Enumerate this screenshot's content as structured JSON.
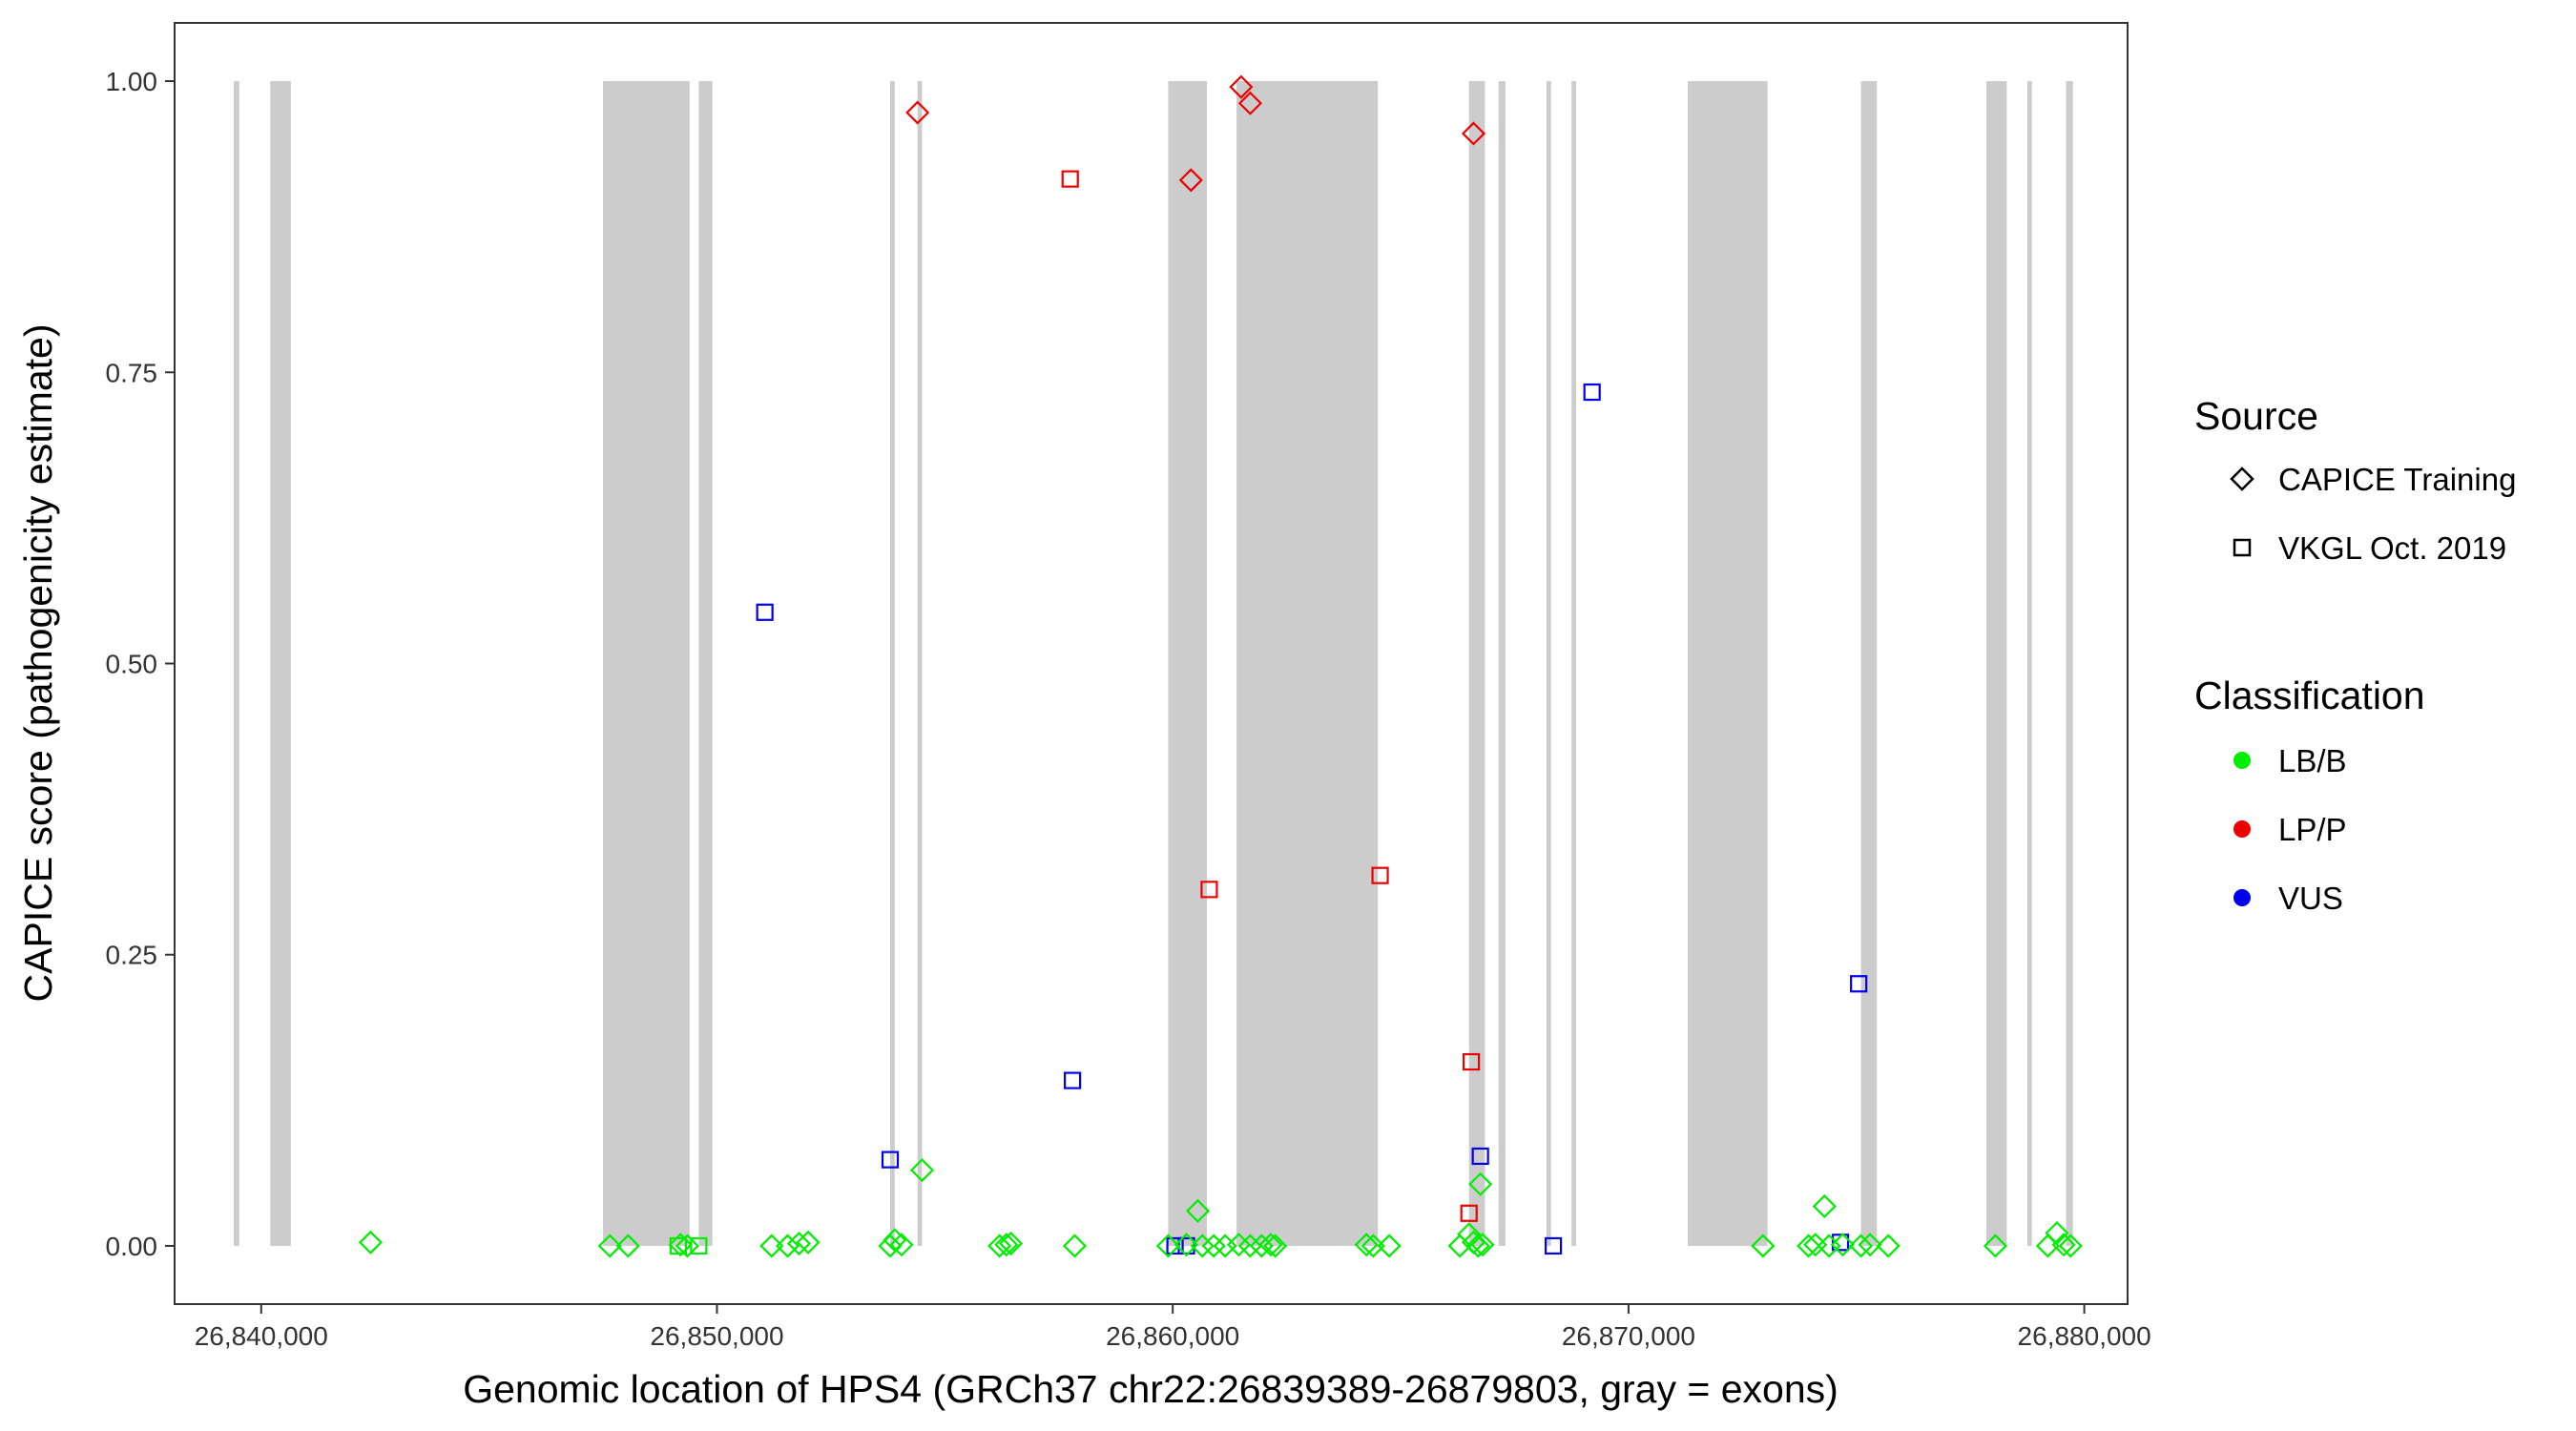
{
  "chart_data": {
    "type": "scatter",
    "title": "",
    "xlabel": "Genomic location of HPS4 (GRCh37 chr22:26839389-26879803, gray = exons)",
    "ylabel": "CAPICE score (pathogenicity estimate)",
    "xlim": [
      26838100,
      26880950
    ],
    "ylim": [
      -0.05,
      1.05
    ],
    "x_ticks": [
      26840000,
      26850000,
      26860000,
      26870000,
      26880000
    ],
    "x_tick_labels": [
      "26,840,000",
      "26,850,000",
      "26,860,000",
      "26,870,000",
      "26,880,000"
    ],
    "y_ticks": [
      0,
      0.25,
      0.5,
      0.75,
      1.0
    ],
    "y_tick_labels": [
      "0.00",
      "0.25",
      "0.50",
      "0.75",
      "1.00"
    ],
    "grid": false,
    "legend_position": "right",
    "exons": [
      [
        26839400,
        26839520
      ],
      [
        26840200,
        26840650
      ],
      [
        26847500,
        26849400
      ],
      [
        26849600,
        26849900
      ],
      [
        26853800,
        26853900
      ],
      [
        26854400,
        26854500
      ],
      [
        26859900,
        26860750
      ],
      [
        26861400,
        26864500
      ],
      [
        26866500,
        26866850
      ],
      [
        26867150,
        26867300
      ],
      [
        26868200,
        26868300
      ],
      [
        26868750,
        26868850
      ],
      [
        26871300,
        26873050
      ],
      [
        26875100,
        26875450
      ],
      [
        26877850,
        26878300
      ],
      [
        26878750,
        26878850
      ],
      [
        26879600,
        26879750
      ]
    ],
    "legend": {
      "source_title": "Source",
      "source_items": [
        {
          "label": "CAPICE Training",
          "shape": "diamond"
        },
        {
          "label": "VKGL Oct. 2019",
          "shape": "square"
        }
      ],
      "class_title": "Classification",
      "class_items": [
        {
          "label": "LB/B",
          "color": "#00ee00"
        },
        {
          "label": "LP/P",
          "color": "#ee0000"
        },
        {
          "label": "VUS",
          "color": "#0000ee"
        }
      ]
    },
    "series": [
      {
        "source": "CAPICE Training",
        "classification": "LP/P",
        "shape": "diamond",
        "color": "#ee0000",
        "points": [
          [
            26854400,
            0.973
          ],
          [
            26860400,
            0.915
          ],
          [
            26861500,
            0.995
          ],
          [
            26861700,
            0.981
          ],
          [
            26866600,
            0.955
          ]
        ]
      },
      {
        "source": "VKGL Oct. 2019",
        "classification": "LP/P",
        "shape": "square",
        "color": "#ee0000",
        "points": [
          [
            26857750,
            0.916
          ],
          [
            26860800,
            0.306
          ],
          [
            26864550,
            0.318
          ],
          [
            26866550,
            0.158
          ],
          [
            26866500,
            0.028
          ]
        ]
      },
      {
        "source": "VKGL Oct. 2019",
        "classification": "VUS",
        "shape": "square",
        "color": "#0000ee",
        "points": [
          [
            26851050,
            0.544
          ],
          [
            26853800,
            0.074
          ],
          [
            26857800,
            0.142
          ],
          [
            26860050,
            0.0
          ],
          [
            26860300,
            0.0
          ],
          [
            26866750,
            0.077
          ],
          [
            26868350,
            0.0
          ],
          [
            26869200,
            0.733
          ],
          [
            26874650,
            0.003
          ],
          [
            26875050,
            0.225
          ]
        ]
      },
      {
        "source": "CAPICE Training",
        "classification": "LB/B",
        "shape": "diamond",
        "color": "#00ee00",
        "points": [
          [
            26842400,
            0.003
          ],
          [
            26847650,
            0.0
          ],
          [
            26848050,
            0.0
          ],
          [
            26849200,
            0.001
          ],
          [
            26849350,
            0.0
          ],
          [
            26851200,
            0.0
          ],
          [
            26851550,
            0.0
          ],
          [
            26851800,
            0.002
          ],
          [
            26852000,
            0.003
          ],
          [
            26853800,
            0.0
          ],
          [
            26853900,
            0.005
          ],
          [
            26854050,
            0.001
          ],
          [
            26854500,
            0.065
          ],
          [
            26856200,
            0.0
          ],
          [
            26856350,
            0.001
          ],
          [
            26856450,
            0.002
          ],
          [
            26857850,
            0.0
          ],
          [
            26859900,
            0.0
          ],
          [
            26860300,
            0.001
          ],
          [
            26860550,
            0.03
          ],
          [
            26860650,
            0.0
          ],
          [
            26860900,
            0.0
          ],
          [
            26861150,
            0.0
          ],
          [
            26861450,
            0.001
          ],
          [
            26861700,
            0.0
          ],
          [
            26861950,
            0.0
          ],
          [
            26862150,
            0.001
          ],
          [
            26862250,
            0.0
          ],
          [
            26864250,
            0.001
          ],
          [
            26864400,
            0.0
          ],
          [
            26864750,
            0.0
          ],
          [
            26866300,
            0.0
          ],
          [
            26866500,
            0.01
          ],
          [
            26866600,
            0.003
          ],
          [
            26866700,
            0.0
          ],
          [
            26866750,
            0.053
          ],
          [
            26866800,
            0.001
          ],
          [
            26872950,
            0.0
          ],
          [
            26873950,
            0.0
          ],
          [
            26874100,
            0.001
          ],
          [
            26874300,
            0.034
          ],
          [
            26874400,
            0.0
          ],
          [
            26874700,
            0.001
          ],
          [
            26875100,
            0.0
          ],
          [
            26875300,
            0.001
          ],
          [
            26875700,
            0.0
          ],
          [
            26878050,
            0.0
          ],
          [
            26879200,
            0.0
          ],
          [
            26879400,
            0.011
          ],
          [
            26879550,
            0.001
          ],
          [
            26879700,
            0.0
          ]
        ]
      },
      {
        "source": "VKGL Oct. 2019",
        "classification": "LB/B",
        "shape": "square",
        "color": "#00ee00",
        "points": [
          [
            26849150,
            0.0
          ],
          [
            26849600,
            0.0
          ]
        ]
      }
    ]
  }
}
